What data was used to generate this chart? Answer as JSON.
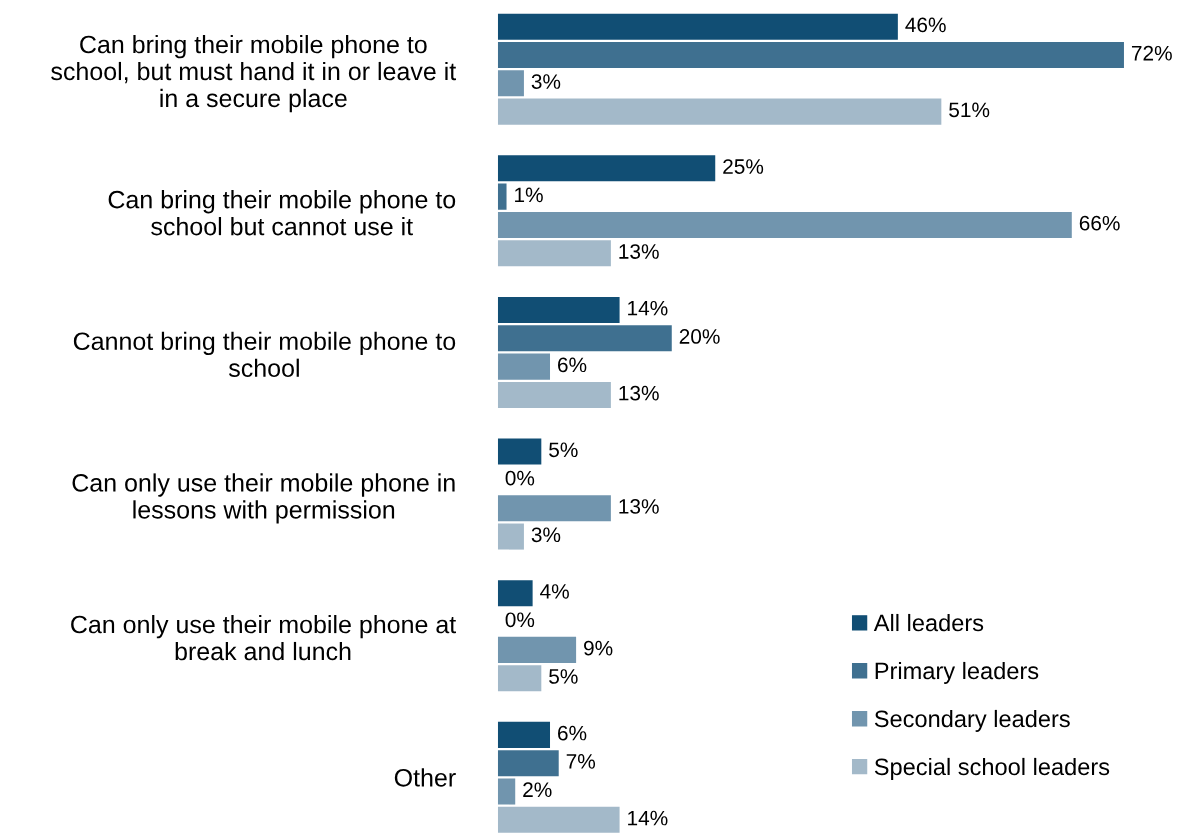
{
  "chart_data": {
    "type": "bar",
    "orientation": "horizontal",
    "categories": [
      "Can bring their mobile phone to\nschool, but must hand it in or leave it\nin a secure place",
      "Can bring their mobile phone to\nschool but cannot use it",
      "Cannot bring their mobile phone to\nschool",
      "Can only use their mobile phone in\nlessons with permission",
      "Can only use their mobile phone at\nbreak and lunch",
      "Other"
    ],
    "series": [
      {
        "name": "All leaders",
        "color": "#114e74",
        "values": [
          46,
          25,
          14,
          5,
          4,
          6
        ],
        "value_labels": [
          "46%",
          "25%",
          "14%",
          "5%",
          "4%",
          "6%"
        ]
      },
      {
        "name": "Primary leaders",
        "color": "#3f7090",
        "values": [
          72,
          1,
          20,
          0,
          0,
          7
        ],
        "value_labels": [
          "72%",
          "1%",
          "20%",
          "0%",
          "0%",
          "7%"
        ]
      },
      {
        "name": "Secondary leaders",
        "color": "#7195ae",
        "values": [
          3,
          66,
          6,
          13,
          9,
          2
        ],
        "value_labels": [
          "3%",
          "66%",
          "6%",
          "13%",
          "9%",
          "2%"
        ]
      },
      {
        "name": "Special school leaders",
        "color": "#a3b9c9",
        "values": [
          51,
          13,
          13,
          3,
          5,
          14
        ],
        "value_labels": [
          "51%",
          "13%",
          "13%",
          "3%",
          "5%",
          "14%"
        ]
      }
    ],
    "tick_labels": "y",
    "grid": false,
    "legend": "right",
    "marker": "square"
  }
}
